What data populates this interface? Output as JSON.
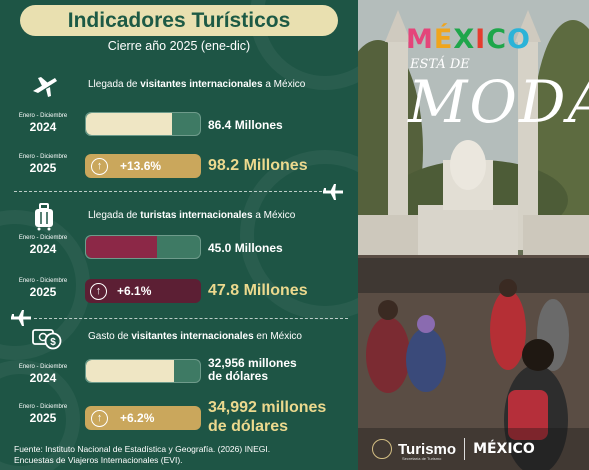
{
  "header": {
    "title": "Indicadores Turísticos",
    "subtitle": "Cierre año 2025 (ene-dic)"
  },
  "sections": [
    {
      "icon": "airplane-icon",
      "heading_pre": "Llegada de ",
      "heading_hl": "visitantes internacionales",
      "heading_post": " a México",
      "rows": [
        {
          "range": "Enero - Diciembre",
          "year": "2024",
          "value": "86.4 Millones",
          "bar_fill": 0.75
        },
        {
          "range": "Enero - Diciembre",
          "year": "2025",
          "change": "+13.6%",
          "value": "98.2 Millones"
        }
      ]
    },
    {
      "icon": "suitcase-icon",
      "heading_pre": "Llegada de ",
      "heading_hl": "turistas internacionales",
      "heading_post": " a México",
      "rows": [
        {
          "range": "Enero - Diciembre",
          "year": "2024",
          "value": "45.0 Millones",
          "bar_fill": 0.62
        },
        {
          "range": "Enero - Diciembre",
          "year": "2025",
          "change": "+6.1%",
          "value": "47.8 Millones"
        }
      ]
    },
    {
      "icon": "money-icon",
      "heading_pre": "Gasto de ",
      "heading_hl": "visitantes internacionales",
      "heading_post": " en México",
      "rows": [
        {
          "range": "Enero - Diciembre",
          "year": "2024",
          "value_line1": "32,956 millones",
          "value_line2": "de dólares",
          "bar_fill": 0.77
        },
        {
          "range": "Enero - Diciembre",
          "year": "2025",
          "change": "+6.2%",
          "value_line1": "34,992 millones",
          "value_line2": "de dólares"
        }
      ]
    }
  ],
  "source": {
    "line1": "Fuente: Instituto Nacional de Estadística y Geografía. (2026) INEGI.",
    "line2": "Encuestas de Viajeros Internacionales (EVI)."
  },
  "photo": {
    "brand": "MÉXICO",
    "tagline_small": "ESTÁ DE",
    "tagline_big": "MODA",
    "footer_turismo": "Turismo",
    "footer_turismo_sub": "Secretaría de Turismo",
    "footer_mexico": "MÉXICO"
  },
  "colors": {
    "panel_green": "#1e5545",
    "title_cream": "#e9e0b0",
    "bar_cream": "#efe6c4",
    "bar_gold": "#caa75c",
    "bar_wine": "#8c2847",
    "value_gold": "#ecd98e"
  }
}
